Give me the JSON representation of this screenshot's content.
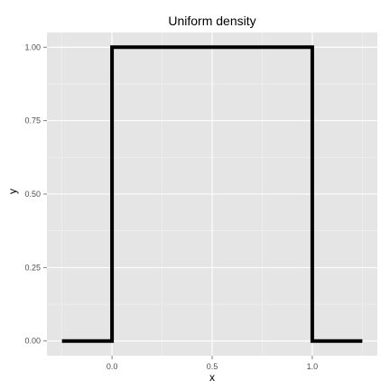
{
  "chart_data": {
    "type": "line",
    "title": "Uniform density",
    "xlabel": "x",
    "ylabel": "y",
    "x_ticks": [
      0.0,
      0.5,
      1.0
    ],
    "x_tick_labels": [
      "0.0",
      "0.5",
      "1.0"
    ],
    "y_ticks": [
      0.0,
      0.25,
      0.5,
      0.75,
      1.0
    ],
    "y_tick_labels": [
      "0.00",
      "0.25",
      "0.50",
      "0.75",
      "1.00"
    ],
    "xlim": [
      -0.25,
      1.25
    ],
    "ylim": [
      0,
      1
    ],
    "grid": true,
    "series": [
      {
        "color": "#000000",
        "points": [
          [
            -0.25,
            0
          ],
          [
            0,
            0
          ],
          [
            0,
            1
          ],
          [
            1,
            1
          ],
          [
            1,
            0
          ],
          [
            1.25,
            0
          ]
        ]
      }
    ]
  },
  "colors": {
    "panel_background": "#e5e5e5",
    "grid_major": "#ffffff",
    "grid_minor": "#f2f2f2",
    "tick_label": "#4d4d4d",
    "line": "#000000"
  }
}
